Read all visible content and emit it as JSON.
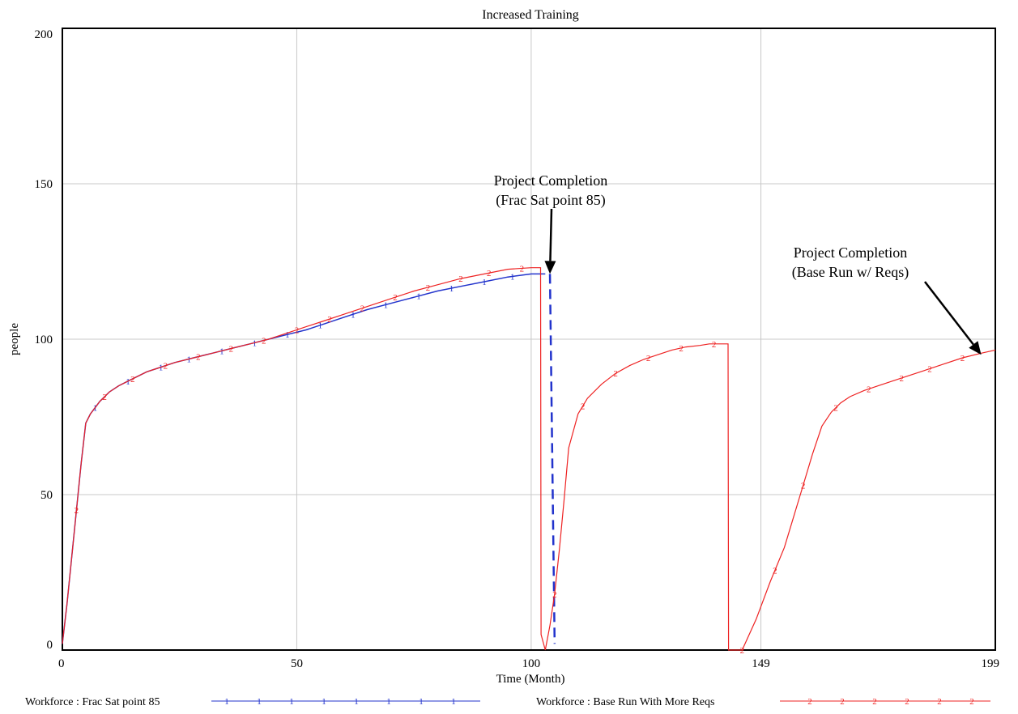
{
  "chart_data": {
    "type": "line",
    "title": "Increased Training",
    "xlabel": "Time (Month)",
    "ylabel": "people",
    "xlim": [
      0,
      199
    ],
    "ylim": [
      0,
      200
    ],
    "x_ticks": [
      0,
      50,
      100,
      149,
      199
    ],
    "y_ticks": [
      0,
      50,
      100,
      150,
      200
    ],
    "grid": true,
    "legend_position": "bottom",
    "series": [
      {
        "name": "Workforce : Frac Sat point 85",
        "marker": "1",
        "color": "#2233cc",
        "x": [
          0,
          1,
          2,
          3,
          4,
          5,
          6,
          7,
          8,
          10,
          12,
          14,
          16,
          18,
          20,
          24,
          28,
          32,
          36,
          40,
          44,
          48,
          52,
          56,
          60,
          65,
          70,
          75,
          80,
          85,
          90,
          95,
          100,
          103
        ],
        "y": [
          2,
          15,
          30,
          45,
          60,
          73,
          76,
          78,
          80,
          83,
          85,
          86.5,
          88,
          89.5,
          90.5,
          92.5,
          94,
          95.5,
          97,
          98.5,
          100,
          101.5,
          103,
          105,
          107,
          109.5,
          111.5,
          113.5,
          115.5,
          117,
          118.5,
          120,
          121,
          121
        ],
        "markers_x": [
          7,
          14,
          21,
          27,
          34,
          41,
          48,
          55,
          62,
          69,
          76,
          83,
          90,
          96
        ],
        "dashed_drop": {
          "x": [
            104,
            105
          ],
          "y": [
            121,
            2
          ]
        }
      },
      {
        "name": "Workforce : Base Run With More Reqs",
        "marker": "2",
        "color": "#ee2222",
        "x": [
          0,
          1,
          2,
          3,
          4,
          5,
          6,
          7,
          8,
          10,
          12,
          14,
          16,
          18,
          20,
          24,
          28,
          32,
          36,
          40,
          44,
          48,
          52,
          56,
          60,
          65,
          70,
          75,
          80,
          85,
          90,
          95,
          100,
          102,
          102.1,
          103,
          104,
          105,
          106,
          107,
          108,
          110,
          112,
          115,
          118,
          121,
          124,
          127,
          130,
          133,
          136,
          138,
          140,
          142,
          142.1,
          143,
          145,
          148,
          151,
          154,
          156,
          158,
          160,
          162,
          164,
          166,
          168,
          171,
          174,
          177,
          180,
          184,
          188,
          192,
          196,
          199
        ],
        "y": [
          2,
          15,
          30,
          45,
          60,
          73,
          76,
          78,
          80,
          83,
          85,
          86.5,
          88,
          89.5,
          90.5,
          92.5,
          94,
          95.5,
          97,
          98.5,
          100,
          102,
          104,
          106,
          108,
          110.5,
          113,
          115.5,
          117.5,
          119.5,
          121,
          122.5,
          123,
          123,
          5,
          0,
          8,
          18,
          32,
          48,
          65,
          76,
          81,
          85.5,
          89,
          91.5,
          93.5,
          95,
          96.5,
          97.5,
          98,
          98.5,
          98.5,
          98.5,
          0,
          0,
          0,
          10,
          22,
          33,
          43,
          53,
          63,
          72,
          76.5,
          79.5,
          81.5,
          83.5,
          85,
          86.5,
          88,
          90,
          92,
          94,
          95.5,
          96.5
        ],
        "markers_x": [
          3,
          9,
          15,
          22,
          29,
          36,
          43,
          50,
          57,
          64,
          71,
          78,
          85,
          91,
          98,
          105,
          111,
          118,
          125,
          132,
          139,
          145,
          152,
          158,
          165,
          172,
          179,
          185,
          192
        ]
      }
    ],
    "annotations": [
      {
        "lines": [
          "Project Completion",
          "(Frac Sat point 85)"
        ],
        "target": [
          104,
          121
        ]
      },
      {
        "lines": [
          "Project Completion",
          "(Base Run w/ Reqs)"
        ],
        "target": [
          196,
          95
        ]
      }
    ],
    "legend_markers": {
      "series1": [
        "1",
        "1",
        "1",
        "1",
        "1",
        "1",
        "1",
        "1"
      ],
      "series2": [
        "2",
        "2",
        "2",
        "2",
        "2",
        "2"
      ]
    }
  }
}
